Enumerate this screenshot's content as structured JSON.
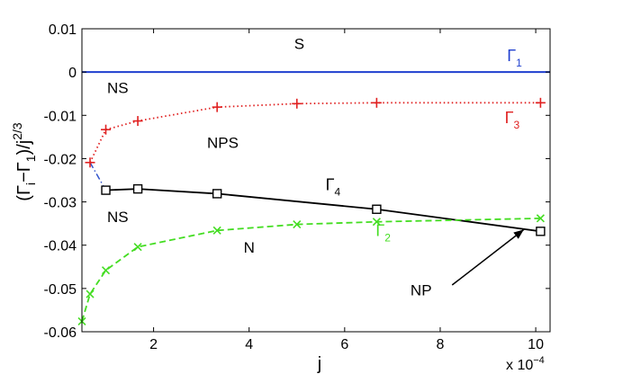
{
  "chart_data": {
    "type": "line",
    "xlabel": "j",
    "ylabel": "(Γ_i−Γ_1)/j^{2/3}",
    "ylabel_parts": {
      "lead": "(Γ",
      "sub_i": "i",
      "mid": "−Γ",
      "sub_1": "1",
      "tail": ")/j",
      "sup": "2/3"
    },
    "x_exponent": {
      "base": "x 10",
      "exp": "−4"
    },
    "xlim": [
      0.5,
      10.3
    ],
    "ylim": [
      -0.06,
      0.01
    ],
    "x_ticks": [
      2,
      4,
      6,
      8,
      10
    ],
    "x_tick_labels": [
      "2",
      "4",
      "6",
      "8",
      "10"
    ],
    "y_ticks": [
      0.01,
      0,
      -0.01,
      -0.02,
      -0.03,
      -0.04,
      -0.05,
      -0.06
    ],
    "y_tick_labels": [
      "0.01",
      "0",
      "-0.01",
      "-0.02",
      "-0.03",
      "-0.04",
      "-0.05",
      "-0.06"
    ],
    "series": [
      {
        "name": "Γ1",
        "label_main": "Γ",
        "label_sub": "1",
        "color": "#1f3fcf",
        "style": "solid",
        "marker": "none",
        "x": [
          0.5,
          10.3
        ],
        "y": [
          0,
          0
        ],
        "label_pos": {
          "x": 9.4,
          "y": 0.0025
        }
      },
      {
        "name": "Γ3",
        "label_main": "Γ",
        "label_sub": "3",
        "color": "#e02020",
        "style": "dotted",
        "marker": "plus",
        "x": [
          0.67,
          1.0,
          1.67,
          3.33,
          5.0,
          6.67,
          10.1
        ],
        "y": [
          -0.0209,
          -0.0133,
          -0.0113,
          -0.0081,
          -0.0073,
          -0.0071,
          -0.0071
        ],
        "label_pos": {
          "x": 9.35,
          "y": -0.0118
        }
      },
      {
        "name": "Γ4",
        "label_main": "Γ",
        "label_sub": "4",
        "color": "#000000",
        "style": "solid",
        "marker": "square",
        "x": [
          1.0,
          1.67,
          3.33,
          6.67,
          10.1
        ],
        "y": [
          -0.0273,
          -0.027,
          -0.0281,
          -0.0317,
          -0.0368
        ],
        "label_pos": {
          "x": 5.6,
          "y": -0.0273
        }
      },
      {
        "name": "Γ2",
        "label_main": "Γ",
        "label_sub": "2",
        "color": "#44dd22",
        "style": "dashed",
        "marker": "cross",
        "x": [
          0.5,
          0.67,
          1.0,
          1.67,
          3.33,
          5.0,
          6.67,
          10.1
        ],
        "y": [
          -0.0576,
          -0.0513,
          -0.0458,
          -0.0404,
          -0.0366,
          -0.0352,
          -0.0346,
          -0.0338
        ],
        "label_pos": {
          "x": 6.65,
          "y": -0.0379
        }
      }
    ],
    "connector": {
      "color": "#3355cc",
      "style": "dashdot",
      "x": [
        0.67,
        1.0
      ],
      "y": [
        -0.0209,
        -0.0273
      ]
    },
    "annotations": [
      {
        "text": "S",
        "x": 5.05,
        "y": 0.0053
      },
      {
        "text": "NS",
        "x": 1.25,
        "y": -0.0049
      },
      {
        "text": "NPS",
        "x": 3.45,
        "y": -0.0175
      },
      {
        "text": "NS",
        "x": 1.25,
        "y": -0.0347
      },
      {
        "text": "N",
        "x": 4.0,
        "y": -0.0417
      },
      {
        "text": "NP",
        "x": 7.6,
        "y": -0.0516
      }
    ],
    "arrow": {
      "from_x": 8.25,
      "from_y": -0.0492,
      "to_x": 9.75,
      "to_y": -0.0364
    },
    "grid": false,
    "legend": "none"
  }
}
